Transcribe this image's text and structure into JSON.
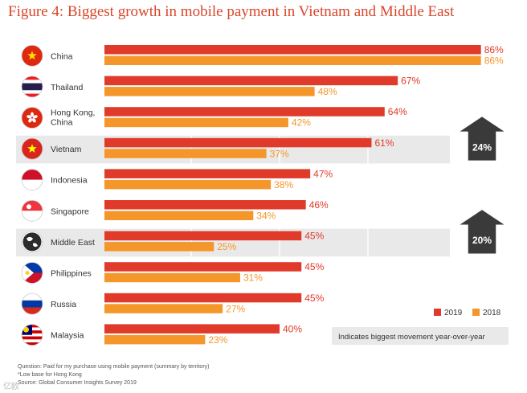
{
  "title": "Figure 4: Biggest growth in mobile payment in Vietnam and Middle East",
  "colors": {
    "y2019": "#e03a2a",
    "y2018": "#f5962a",
    "highlight_bg": "#e9e9e9",
    "arrow": "#3a3a3a",
    "title": "#d9462a"
  },
  "chart_data": {
    "type": "bar",
    "orientation": "horizontal",
    "categories": [
      "China",
      "Thailand",
      "Hong Kong, China",
      "Vietnam",
      "Indonesia",
      "Singapore",
      "Middle East",
      "Philippines",
      "Russia",
      "Malaysia"
    ],
    "series": [
      {
        "name": "2019",
        "values": [
          86,
          67,
          64,
          61,
          47,
          46,
          45,
          45,
          45,
          40
        ]
      },
      {
        "name": "2018",
        "values": [
          86,
          48,
          42,
          37,
          38,
          34,
          25,
          31,
          27,
          23
        ]
      }
    ],
    "value_suffix": "%",
    "xlim": [
      0,
      86
    ],
    "highlighted": [
      {
        "category": "Vietnam",
        "label": "24%"
      },
      {
        "category": "Middle East",
        "label": "20%"
      }
    ],
    "legend_position": "bottom-right",
    "legend_note": "Indicates biggest movement year-over-year",
    "grid": true
  },
  "footer": {
    "question": "Question: Paid for my purchase using mobile payment (summary by territory)",
    "note": "*Low base for Hong Kong",
    "source": "Source: Global Consumer Insights Survey 2019"
  },
  "watermark": "亿欧"
}
